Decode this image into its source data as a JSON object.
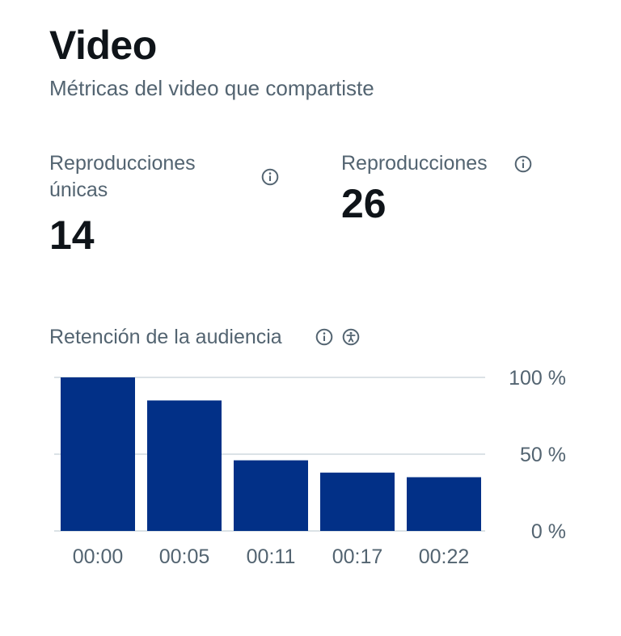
{
  "header": {
    "title": "Video",
    "subtitle": "Métricas del video que compartiste"
  },
  "metrics": [
    {
      "label_line1": "Reproducciones",
      "label_line2": "únicas",
      "value": "14",
      "icon": "info-icon"
    },
    {
      "label": "Reproducciones",
      "value": "26",
      "icon": "info-icon"
    }
  ],
  "retention": {
    "title": "Retención de la audiencia",
    "icons": [
      "info-icon",
      "accessibility-icon"
    ]
  },
  "colors": {
    "bar": "#023087",
    "muted_text": "#536471",
    "gridline": "#cfd9de"
  },
  "chart_data": {
    "type": "bar",
    "title": "Retención de la audiencia",
    "categories": [
      "00:00",
      "00:05",
      "00:11",
      "00:17",
      "00:22"
    ],
    "values": [
      100,
      85,
      46,
      38,
      35
    ],
    "y_ticks": [
      "100 %",
      "50 %",
      "0 %"
    ],
    "y_tick_values": [
      100,
      50,
      0
    ],
    "ylim": [
      0,
      100
    ],
    "grid": true,
    "y_axis_side": "right"
  }
}
